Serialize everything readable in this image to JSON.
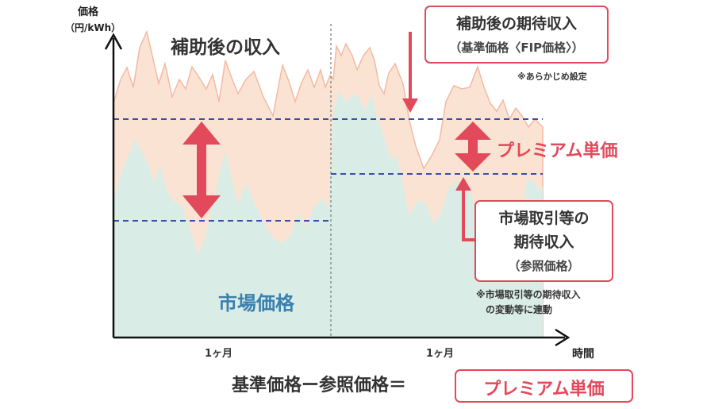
{
  "axis": {
    "y_title": "価格",
    "y_unit": "（円/kWh）",
    "x_title": "時間",
    "x_ticks": [
      "1ヶ月",
      "1ヶ月"
    ]
  },
  "labels": {
    "subsidy_income": "補助後の収入",
    "market_price": "市場価格",
    "premium_unit_price": "プレミアム単価"
  },
  "callouts": {
    "fip_expected": {
      "line1": "補助後の期待収入",
      "line2": "（基準価格〈FIP価格〉）"
    },
    "preset_note": "※あらかじめ設定",
    "reference": {
      "line1": "市場取引等の",
      "line2": "期待収入",
      "line3": "（参照価格）"
    },
    "linked_note": {
      "line1": "※市場取引等の期待収入",
      "line2": "の変動等に連動"
    }
  },
  "formula": {
    "text": "基準価格ー参照価格＝",
    "result": "プレミアム単価"
  },
  "colors": {
    "market_fill": "#d9ede6",
    "subsidy_fill": "#fbe3d3",
    "subsidy_line": "#f3b9a4",
    "dashed_line": "#3b4fa6",
    "accent_red": "#e2495a",
    "market_text": "#3a7fae"
  }
}
